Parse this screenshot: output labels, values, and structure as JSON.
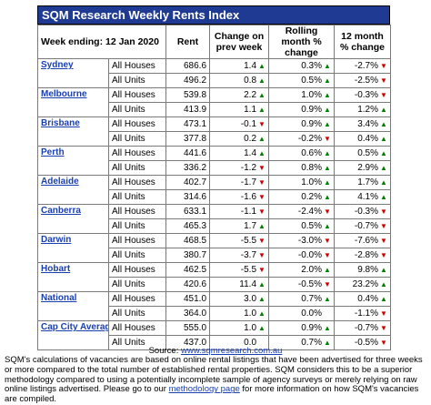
{
  "title": "SQM Research Weekly Rents Index",
  "header": {
    "week_label": "Week ending: 12 Jan 2020",
    "rent": "Rent",
    "change": "Change on prev week",
    "rolling": "Rolling month % change",
    "twelve": "12 month % change"
  },
  "rows": [
    {
      "city": "Sydney",
      "type": "All Houses",
      "rent": "686.6",
      "chg": "1.4",
      "chg_dir": "up",
      "roll": "0.3%",
      "roll_dir": "up",
      "m12": "-2.7%",
      "m12_dir": "down"
    },
    {
      "city": "",
      "type": "All Units",
      "rent": "496.2",
      "chg": "0.8",
      "chg_dir": "up",
      "roll": "0.5%",
      "roll_dir": "up",
      "m12": "-2.5%",
      "m12_dir": "down"
    },
    {
      "city": "Melbourne",
      "type": "All Houses",
      "rent": "539.8",
      "chg": "2.2",
      "chg_dir": "up",
      "roll": "1.0%",
      "roll_dir": "up",
      "m12": "-0.3%",
      "m12_dir": "down"
    },
    {
      "city": "",
      "type": "All Units",
      "rent": "413.9",
      "chg": "1.1",
      "chg_dir": "up",
      "roll": "0.9%",
      "roll_dir": "up",
      "m12": "1.2%",
      "m12_dir": "up"
    },
    {
      "city": "Brisbane",
      "type": "All Houses",
      "rent": "473.1",
      "chg": "-0.1",
      "chg_dir": "down",
      "roll": "0.9%",
      "roll_dir": "up",
      "m12": "3.4%",
      "m12_dir": "up"
    },
    {
      "city": "",
      "type": "All Units",
      "rent": "377.8",
      "chg": "0.2",
      "chg_dir": "up",
      "roll": "-0.2%",
      "roll_dir": "down",
      "m12": "0.4%",
      "m12_dir": "up"
    },
    {
      "city": "Perth",
      "type": "All Houses",
      "rent": "441.6",
      "chg": "1.4",
      "chg_dir": "up",
      "roll": "0.6%",
      "roll_dir": "up",
      "m12": "0.5%",
      "m12_dir": "up"
    },
    {
      "city": "",
      "type": "All Units",
      "rent": "336.2",
      "chg": "-1.2",
      "chg_dir": "down",
      "roll": "0.8%",
      "roll_dir": "up",
      "m12": "2.9%",
      "m12_dir": "up"
    },
    {
      "city": "Adelaide",
      "type": "All Houses",
      "rent": "402.7",
      "chg": "-1.7",
      "chg_dir": "down",
      "roll": "1.0%",
      "roll_dir": "up",
      "m12": "1.7%",
      "m12_dir": "up"
    },
    {
      "city": "",
      "type": "All Units",
      "rent": "314.6",
      "chg": "-1.6",
      "chg_dir": "down",
      "roll": "0.2%",
      "roll_dir": "up",
      "m12": "4.1%",
      "m12_dir": "up"
    },
    {
      "city": "Canberra",
      "type": "All Houses",
      "rent": "633.1",
      "chg": "-1.1",
      "chg_dir": "down",
      "roll": "-2.4%",
      "roll_dir": "down",
      "m12": "-0.3%",
      "m12_dir": "down"
    },
    {
      "city": "",
      "type": "All Units",
      "rent": "465.3",
      "chg": "1.7",
      "chg_dir": "up",
      "roll": "0.5%",
      "roll_dir": "up",
      "m12": "-0.7%",
      "m12_dir": "down"
    },
    {
      "city": "Darwin",
      "type": "All Houses",
      "rent": "468.5",
      "chg": "-5.5",
      "chg_dir": "down",
      "roll": "-3.0%",
      "roll_dir": "down",
      "m12": "-7.6%",
      "m12_dir": "down"
    },
    {
      "city": "",
      "type": "All Units",
      "rent": "380.7",
      "chg": "-3.7",
      "chg_dir": "down",
      "roll": "-0.0%",
      "roll_dir": "down",
      "m12": "-2.8%",
      "m12_dir": "down"
    },
    {
      "city": "Hobart",
      "type": "All Houses",
      "rent": "462.5",
      "chg": "-5.5",
      "chg_dir": "down",
      "roll": "2.0%",
      "roll_dir": "up",
      "m12": "9.8%",
      "m12_dir": "up"
    },
    {
      "city": "",
      "type": "All Units",
      "rent": "420.6",
      "chg": "11.4",
      "chg_dir": "up",
      "roll": "-0.5%",
      "roll_dir": "down",
      "m12": "23.2%",
      "m12_dir": "up"
    },
    {
      "city": "National",
      "type": "All Houses",
      "rent": "451.0",
      "chg": "3.0",
      "chg_dir": "up",
      "roll": "0.7%",
      "roll_dir": "up",
      "m12": "0.4%",
      "m12_dir": "up"
    },
    {
      "city": "",
      "type": "All Units",
      "rent": "364.0",
      "chg": "1.0",
      "chg_dir": "up",
      "roll": "0.0%",
      "roll_dir": "none",
      "m12": "-1.1%",
      "m12_dir": "down"
    },
    {
      "city": "Cap City Average",
      "type": "All Houses",
      "rent": "555.0",
      "chg": "1.0",
      "chg_dir": "up",
      "roll": "0.9%",
      "roll_dir": "up",
      "m12": "-0.7%",
      "m12_dir": "down"
    },
    {
      "city": "",
      "type": "All Units",
      "rent": "437.0",
      "chg": "0.0",
      "chg_dir": "none",
      "roll": "0.7%",
      "roll_dir": "up",
      "m12": "-0.5%",
      "m12_dir": "down"
    }
  ],
  "source": {
    "prefix": "Source: ",
    "link": "www.sqmresearch.com.au"
  },
  "note": {
    "text": "SQM's calculations of vacancies are based on online rental listings that have been advertised for three weeks or more compared to the total number of established rental properties. SQM considers this to be a superior methodology compared to using a potentially incomplete sample of agency surveys or merely relying on raw online listings advertised.  Please go to our ",
    "link": "methodology page",
    "suffix": " for more information on how SQM's vacancies are compiled."
  },
  "colors": {
    "title_bg": "#1f3a93",
    "city_link": "#1a3fb0",
    "up": "#008000",
    "down": "#cc0000"
  },
  "icons": {
    "up": "triangle-up-icon",
    "down": "triangle-down-icon"
  }
}
